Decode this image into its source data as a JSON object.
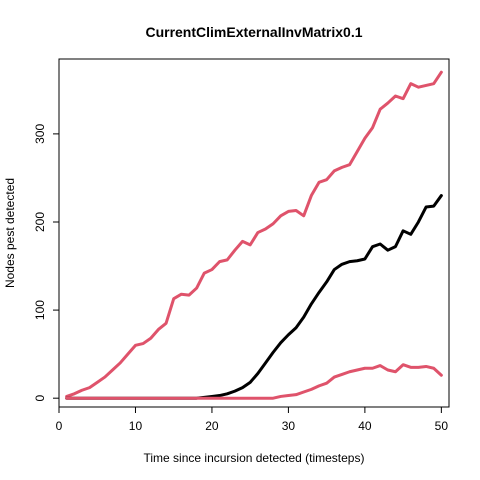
{
  "chart_data": {
    "type": "line",
    "title": "CurrentClimExternalInvMatrix0.1",
    "xlabel": "Time since incursion detected (timesteps)",
    "ylabel": "Nodes pest detected",
    "xlim": [
      0,
      51
    ],
    "ylim": [
      -10,
      385
    ],
    "xticks": [
      0,
      10,
      20,
      30,
      40,
      50
    ],
    "yticks": [
      0,
      100,
      200,
      300
    ],
    "grid": false,
    "legend": "none",
    "x": [
      1,
      2,
      3,
      4,
      5,
      6,
      7,
      8,
      9,
      10,
      11,
      12,
      13,
      14,
      15,
      16,
      17,
      18,
      19,
      20,
      21,
      22,
      23,
      24,
      25,
      26,
      27,
      28,
      29,
      30,
      31,
      32,
      33,
      34,
      35,
      36,
      37,
      38,
      39,
      40,
      41,
      42,
      43,
      44,
      45,
      46,
      47,
      48,
      49,
      50
    ],
    "series": [
      {
        "color": "#DF536B",
        "values": [
          2,
          5,
          9,
          12,
          18,
          24,
          32,
          40,
          50,
          60,
          62,
          68,
          78,
          85,
          113,
          118,
          117,
          125,
          142,
          146,
          155,
          157,
          168,
          178,
          174,
          188,
          192,
          198,
          207,
          212,
          213,
          207,
          230,
          245,
          248,
          258,
          262,
          265,
          280,
          295,
          307,
          328,
          335,
          343,
          340,
          357,
          353,
          355,
          357,
          370
        ]
      },
      {
        "color": "#000000",
        "values": [
          0,
          0,
          0,
          0,
          0,
          0,
          0,
          0,
          0,
          0,
          0,
          0,
          0,
          0,
          0,
          0,
          0,
          0,
          1,
          2,
          3,
          5,
          8,
          12,
          18,
          28,
          40,
          52,
          63,
          72,
          80,
          92,
          107,
          120,
          132,
          146,
          152,
          155,
          156,
          158,
          172,
          175,
          168,
          172,
          190,
          186,
          200,
          217,
          218,
          230
        ]
      },
      {
        "color": "#DF536B",
        "values": [
          0,
          0,
          0,
          0,
          0,
          0,
          0,
          0,
          0,
          0,
          0,
          0,
          0,
          0,
          0,
          0,
          0,
          0,
          0,
          0,
          0,
          0,
          0,
          0,
          0,
          0,
          0,
          0,
          2,
          3,
          4,
          7,
          10,
          14,
          17,
          24,
          27,
          30,
          32,
          34,
          34,
          37,
          32,
          30,
          38,
          35,
          35,
          36,
          34,
          26
        ]
      }
    ]
  }
}
